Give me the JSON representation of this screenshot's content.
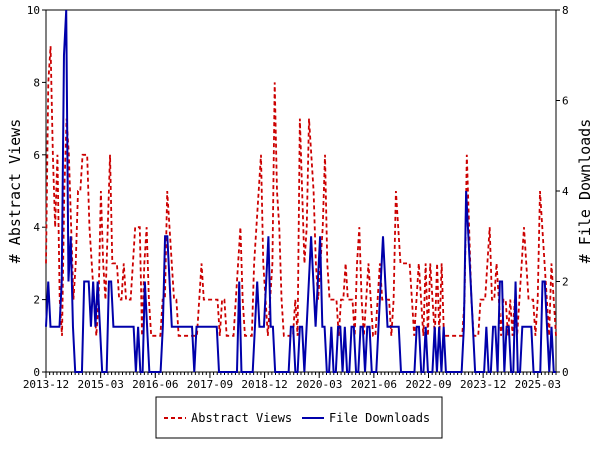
{
  "chart_data": {
    "type": "line",
    "ylabel_left": "# Abstract Views",
    "ylabel_right": "# File Downloads",
    "ylim_left": [
      0,
      10
    ],
    "ylim_right": [
      0,
      8
    ],
    "yticks_left": [
      "0",
      "2",
      "4",
      "6",
      "8",
      "10"
    ],
    "yticks_right": [
      "0",
      "2",
      "4",
      "6",
      "8"
    ],
    "x_range": [
      "2013-12",
      "2025-08"
    ],
    "x_tick_labels": [
      "2013-12",
      "2015-03",
      "2016-06",
      "2017-09",
      "2018-12",
      "2020-03",
      "2021-06",
      "2022-09",
      "2023-12",
      "2025-03"
    ],
    "grid": false,
    "legend_position": "bottom",
    "series": [
      {
        "name": "Abstract Views",
        "axis": "left",
        "color": "#cc0000",
        "dash": "dashed",
        "values": [
          3,
          8,
          9,
          6,
          4,
          6,
          2,
          1,
          5,
          7,
          6,
          4,
          2,
          3,
          5,
          5,
          6,
          6,
          6,
          4,
          3,
          2,
          1,
          2,
          5,
          3,
          2,
          4,
          6,
          3,
          3,
          3,
          2,
          2,
          3,
          2,
          2,
          2,
          3,
          4,
          4,
          4,
          1,
          3,
          4,
          2,
          1,
          1,
          1,
          1,
          1,
          2,
          2,
          5,
          4,
          3,
          2,
          2,
          1,
          1,
          1,
          1,
          1,
          1,
          1,
          1,
          1,
          2,
          3,
          2,
          2,
          2,
          2,
          2,
          2,
          2,
          1,
          2,
          2,
          1,
          1,
          1,
          1,
          2,
          3,
          4,
          2,
          1,
          1,
          1,
          1,
          3,
          4,
          5,
          6,
          3,
          2,
          1,
          2,
          3,
          8,
          5,
          4,
          2,
          1,
          1,
          1,
          1,
          1,
          2,
          1,
          7,
          5,
          3,
          4,
          7,
          6,
          5,
          3,
          2,
          3,
          4,
          6,
          3,
          2,
          2,
          2,
          2,
          1,
          2,
          2,
          3,
          2,
          2,
          2,
          1,
          3,
          4,
          2,
          1,
          2,
          3,
          2,
          1,
          1,
          2,
          3,
          2,
          2,
          2,
          2,
          1,
          2,
          5,
          4,
          3,
          3,
          3,
          3,
          3,
          2,
          1,
          2,
          3,
          2,
          1,
          3,
          1,
          3,
          2,
          1,
          3,
          1,
          3,
          1,
          1,
          1,
          1,
          1,
          1,
          1,
          1,
          1,
          2,
          6,
          4,
          2,
          1,
          1,
          1,
          2,
          2,
          2,
          3,
          4,
          2,
          2,
          3,
          2,
          1,
          2,
          2,
          1,
          2,
          1,
          2,
          1,
          2,
          3,
          4,
          3,
          2,
          2,
          2,
          1,
          2,
          5,
          4,
          3,
          2,
          1,
          3,
          2,
          1
        ]
      },
      {
        "name": "File Downloads",
        "axis": "right",
        "color": "#0000aa",
        "dash": "solid",
        "values": [
          1,
          2,
          1,
          1,
          1,
          1,
          1,
          2,
          7,
          8,
          2,
          3,
          1,
          0,
          0,
          0,
          0,
          2,
          2,
          2,
          1,
          2,
          1,
          2,
          1,
          0,
          0,
          0,
          2,
          2,
          1,
          1,
          1,
          1,
          1,
          1,
          1,
          1,
          1,
          1,
          0,
          1,
          0,
          0,
          2,
          1,
          0,
          0,
          0,
          0,
          0,
          0,
          1,
          3,
          3,
          2,
          1,
          1,
          1,
          1,
          1,
          1,
          1,
          1,
          1,
          1,
          0,
          1,
          1,
          1,
          1,
          1,
          1,
          1,
          1,
          1,
          1,
          0,
          0,
          0,
          0,
          0,
          0,
          0,
          0,
          0,
          2,
          0,
          0,
          0,
          0,
          0,
          0,
          1,
          2,
          1,
          1,
          1,
          2,
          3,
          1,
          1,
          0,
          0,
          0,
          0,
          0,
          0,
          0,
          1,
          1,
          0,
          0,
          1,
          1,
          0,
          1,
          2,
          3,
          2,
          1,
          2,
          3,
          1,
          1,
          0,
          0,
          1,
          0,
          0,
          1,
          1,
          0,
          1,
          0,
          0,
          1,
          1,
          0,
          0,
          1,
          1,
          0,
          1,
          1,
          0,
          0,
          0,
          1,
          2,
          3,
          2,
          1,
          1,
          1,
          1,
          1,
          1,
          0,
          0,
          0,
          0,
          0,
          0,
          0,
          1,
          1,
          0,
          0,
          1,
          0,
          0,
          0,
          1,
          0,
          1,
          0,
          1,
          0,
          0,
          0,
          0,
          0,
          0,
          0,
          0,
          1,
          4,
          3,
          2,
          1,
          0,
          0,
          0,
          0,
          0,
          1,
          0,
          0,
          1,
          1,
          0,
          2,
          2,
          0,
          1,
          1,
          0,
          0,
          2,
          0,
          0,
          1,
          1,
          1,
          1,
          1,
          0,
          0,
          0,
          0,
          2,
          2,
          1,
          0,
          1,
          0,
          0
        ]
      }
    ]
  }
}
